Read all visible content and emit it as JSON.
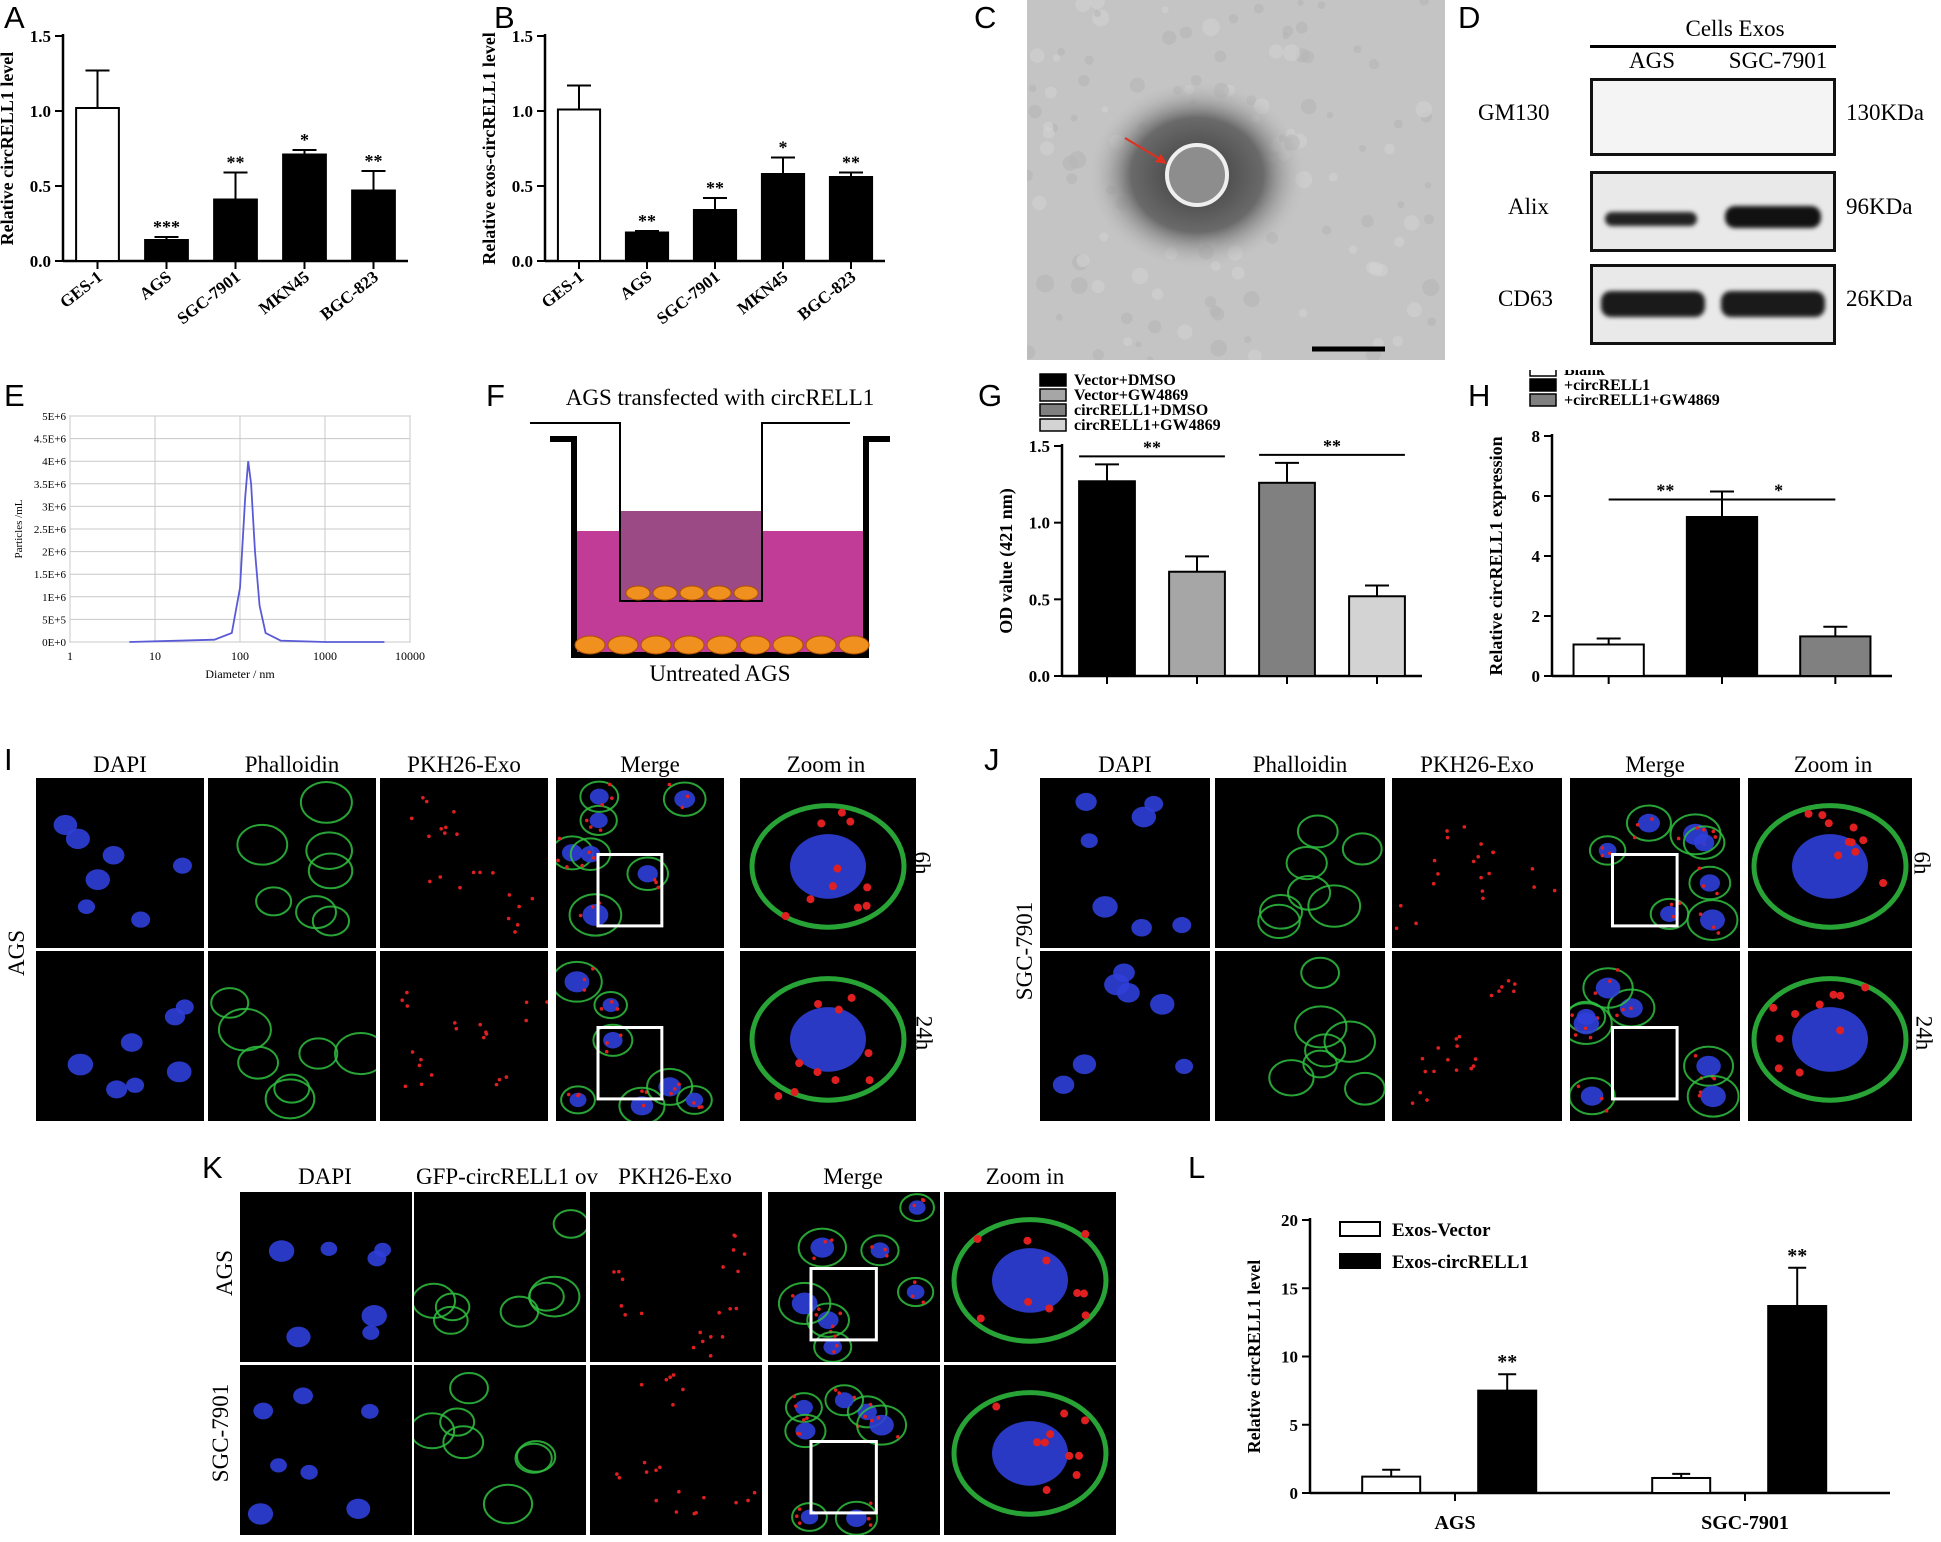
{
  "panel_letters": {
    "A": "A",
    "B": "B",
    "C": "C",
    "D": "D",
    "E": "E",
    "F": "F",
    "G": "G",
    "H": "H",
    "I": "I",
    "J": "J",
    "K": "K",
    "L": "L"
  },
  "chart_data": [
    {
      "id": "A",
      "type": "bar",
      "categories": [
        "GES-1",
        "AGS",
        "SGC-7901",
        "MKN45",
        "BGC-823"
      ],
      "values": [
        1.02,
        0.14,
        0.41,
        0.71,
        0.47
      ],
      "errors": [
        0.25,
        0.02,
        0.18,
        0.03,
        0.13
      ],
      "significance": [
        "",
        "***",
        "**",
        "*",
        "**"
      ],
      "fills": [
        "#ffffff",
        "#000000",
        "#000000",
        "#000000",
        "#000000"
      ],
      "ylabel": "Relative circRELL1 level",
      "ylim": [
        0,
        1.5
      ],
      "yticks": [
        "0.0",
        "0.5",
        "1.0",
        "1.5"
      ]
    },
    {
      "id": "B",
      "type": "bar",
      "categories": [
        "GES-1",
        "AGS",
        "SGC-7901",
        "MKN45",
        "BGC-823"
      ],
      "values": [
        1.01,
        0.19,
        0.34,
        0.58,
        0.56
      ],
      "errors": [
        0.16,
        0.01,
        0.08,
        0.11,
        0.03
      ],
      "significance": [
        "",
        "**",
        "**",
        "*",
        "**"
      ],
      "fills": [
        "#ffffff",
        "#000000",
        "#000000",
        "#000000",
        "#000000"
      ],
      "ylabel": "Relative exos-circRELL1 level",
      "ylim": [
        0,
        1.5
      ],
      "yticks": [
        "0.0",
        "0.5",
        "1.0",
        "1.5"
      ]
    },
    {
      "id": "E",
      "type": "line",
      "x": [
        5,
        50,
        80,
        100,
        115,
        125,
        135,
        150,
        170,
        200,
        300,
        1000,
        5000
      ],
      "y": [
        0,
        50000,
        200000,
        1200000,
        3200000,
        4000000,
        3500000,
        2000000,
        800000,
        200000,
        30000,
        0,
        0
      ],
      "xlabel": "Diameter / nm",
      "ylabel": "Particles /mL",
      "xticks": [
        "1",
        "10",
        "100",
        "1000",
        "10000"
      ],
      "yticks": [
        "0E+0",
        "5E+5",
        "1E+6",
        "1.5E+6",
        "2E+6",
        "2.5E+6",
        "3E+6",
        "3.5E+6",
        "4E+6",
        "4.5E+6",
        "5E+6"
      ],
      "xscale": "log",
      "xlim": [
        1,
        10000
      ],
      "ylim": [
        0,
        5000000
      ],
      "grid": true
    },
    {
      "id": "G",
      "type": "bar",
      "categories": [
        "Vector+DMSO",
        "Vector+GW4869",
        "circRELL1+DMSO",
        "circRELL1+GW4869"
      ],
      "values": [
        1.27,
        0.68,
        1.26,
        0.52
      ],
      "errors": [
        0.11,
        0.1,
        0.13,
        0.07
      ],
      "fills": [
        "#000000",
        "#a6a6a6",
        "#808080",
        "#d3d3d3"
      ],
      "legend": [
        "Vector+DMSO",
        "Vector+GW4869",
        "circRELL1+DMSO",
        "circRELL1+GW4869"
      ],
      "comparisons": [
        {
          "from": 0,
          "to": 1,
          "label": "**"
        },
        {
          "from": 2,
          "to": 3,
          "label": "**"
        }
      ],
      "ylabel": "OD value (421 nm)",
      "ylim": [
        0,
        1.5
      ],
      "yticks": [
        "0.0",
        "0.5",
        "1.0",
        "1.5"
      ]
    },
    {
      "id": "H",
      "type": "bar",
      "categories": [
        "Blank",
        "+circRELL1",
        "+circRELL1+GW4869"
      ],
      "values": [
        1.05,
        5.3,
        1.32
      ],
      "errors": [
        0.2,
        0.85,
        0.32
      ],
      "fills": [
        "#ffffff",
        "#000000",
        "#808080"
      ],
      "legend": [
        "Blank",
        "+circRELL1",
        "+circRELL1+GW4869"
      ],
      "comparisons": [
        {
          "from": 0,
          "to": 1,
          "label": "**"
        },
        {
          "from": 1,
          "to": 2,
          "label": "*"
        }
      ],
      "ylabel": "Relative circRELL1 expression",
      "ylim": [
        0,
        8
      ],
      "yticks": [
        "0",
        "2",
        "4",
        "6",
        "8"
      ]
    },
    {
      "id": "L",
      "type": "bar",
      "categories": [
        "AGS",
        "SGC-7901"
      ],
      "series": [
        {
          "name": "Exos-Vector",
          "values": [
            1.2,
            1.1
          ],
          "errors": [
            0.5,
            0.3
          ],
          "fill": "#ffffff"
        },
        {
          "name": "Exos-circRELL1",
          "values": [
            7.5,
            13.7
          ],
          "errors": [
            1.2,
            2.8
          ],
          "fill": "#000000"
        }
      ],
      "significance": [
        "**",
        "**"
      ],
      "ylabel": "Relative circRELL1 level",
      "ylim": [
        0,
        20
      ],
      "yticks": [
        "0",
        "5",
        "10",
        "15",
        "20"
      ]
    }
  ],
  "panel_D": {
    "header": "Cells Exos",
    "cols": [
      "AGS",
      "SGC-7901"
    ],
    "rows": [
      {
        "protein": "GM130",
        "size": "130KDa"
      },
      {
        "protein": "Alix",
        "size": "96KDa"
      },
      {
        "protein": "CD63",
        "size": "26KDa"
      }
    ]
  },
  "panel_F": {
    "top": "AGS transfected with circRELL1",
    "bottom": "Untreated AGS"
  },
  "panel_I": {
    "headers": [
      "DAPI",
      "Phalloidin",
      "PKH26-Exo",
      "Merge",
      "Zoom in"
    ],
    "row_label": "AGS",
    "times": [
      "6h",
      "24h"
    ]
  },
  "panel_J": {
    "headers": [
      "DAPI",
      "Phalloidin",
      "PKH26-Exo",
      "Merge",
      "Zoom in"
    ],
    "row_label": "SGC-7901",
    "times": [
      "6h",
      "24h"
    ]
  },
  "panel_K": {
    "headers": [
      "DAPI",
      "GFP-circRELL1 ov",
      "PKH26-Exo",
      "Merge",
      "Zoom in"
    ],
    "rows": [
      "AGS",
      "SGC-7901"
    ]
  },
  "colors": {
    "dapi": "#2f3fd8",
    "phalloidin": "#2fbf3f",
    "pkh26": "#e02020",
    "tem_background": "#c4c4c4",
    "media_upper": "#9b4a86",
    "media_lower": "#c03c96",
    "cell": "#f0901e",
    "nta_line": "#5a5ad6"
  }
}
